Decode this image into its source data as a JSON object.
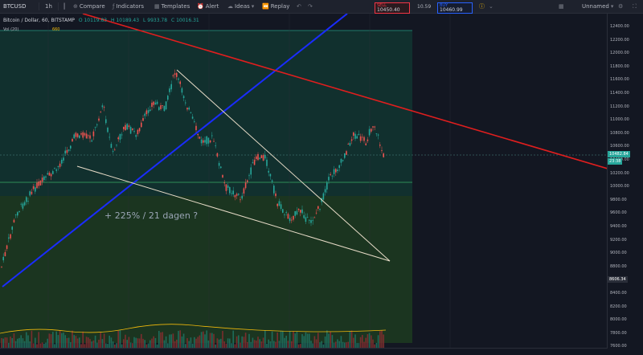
{
  "toolbar": {
    "symbol": "BTCUSD",
    "interval": "1h",
    "compare": "Compare",
    "indicators": "Indicators",
    "templates": "Templates",
    "alert": "Alert",
    "ideas": "Ideas",
    "replay": "Replay",
    "layout_name": "Unnamed",
    "sell_label": "SELL",
    "sell_price": "10450.40",
    "spread": "10.59",
    "buy_label": "BUY",
    "buy_price": "10460.99"
  },
  "legend": {
    "title": "Bitcoin / Dollar, 60, BITSTAMP",
    "open": "O 10119.83",
    "high": "H 10189.43",
    "low": "L 9933.78",
    "close": "C 10016.31",
    "volume": "Vol (20)",
    "volume_value": "660"
  },
  "price_axis": {
    "ticks": [
      "12400.00",
      "12200.00",
      "12000.00",
      "11800.00",
      "11600.00",
      "11400.00",
      "11200.00",
      "11000.00",
      "10800.00",
      "10600.00",
      "10400.00",
      "10200.00",
      "10000.00",
      "9800.00",
      "9600.00",
      "9400.00",
      "9200.00",
      "9000.00",
      "8800.00",
      "8600.00",
      "8400.00",
      "8200.00",
      "8000.00",
      "7800.00",
      "7600.00"
    ],
    "last_price_tag": "10482.84",
    "countdown_tag": "23:38",
    "marker_tag": "8606.34"
  },
  "annotation": "+ 225% / 21 dagen ?",
  "colors": {
    "background": "#131722",
    "upper_zone": "#11302e",
    "lower_zone": "#1b3520",
    "blue_trendline": "#1a2cff",
    "red_trendline": "#e01e1e",
    "wedge_line": "#e8dcc8",
    "candle_up": "#26a69a",
    "candle_down": "#ef5350"
  }
}
